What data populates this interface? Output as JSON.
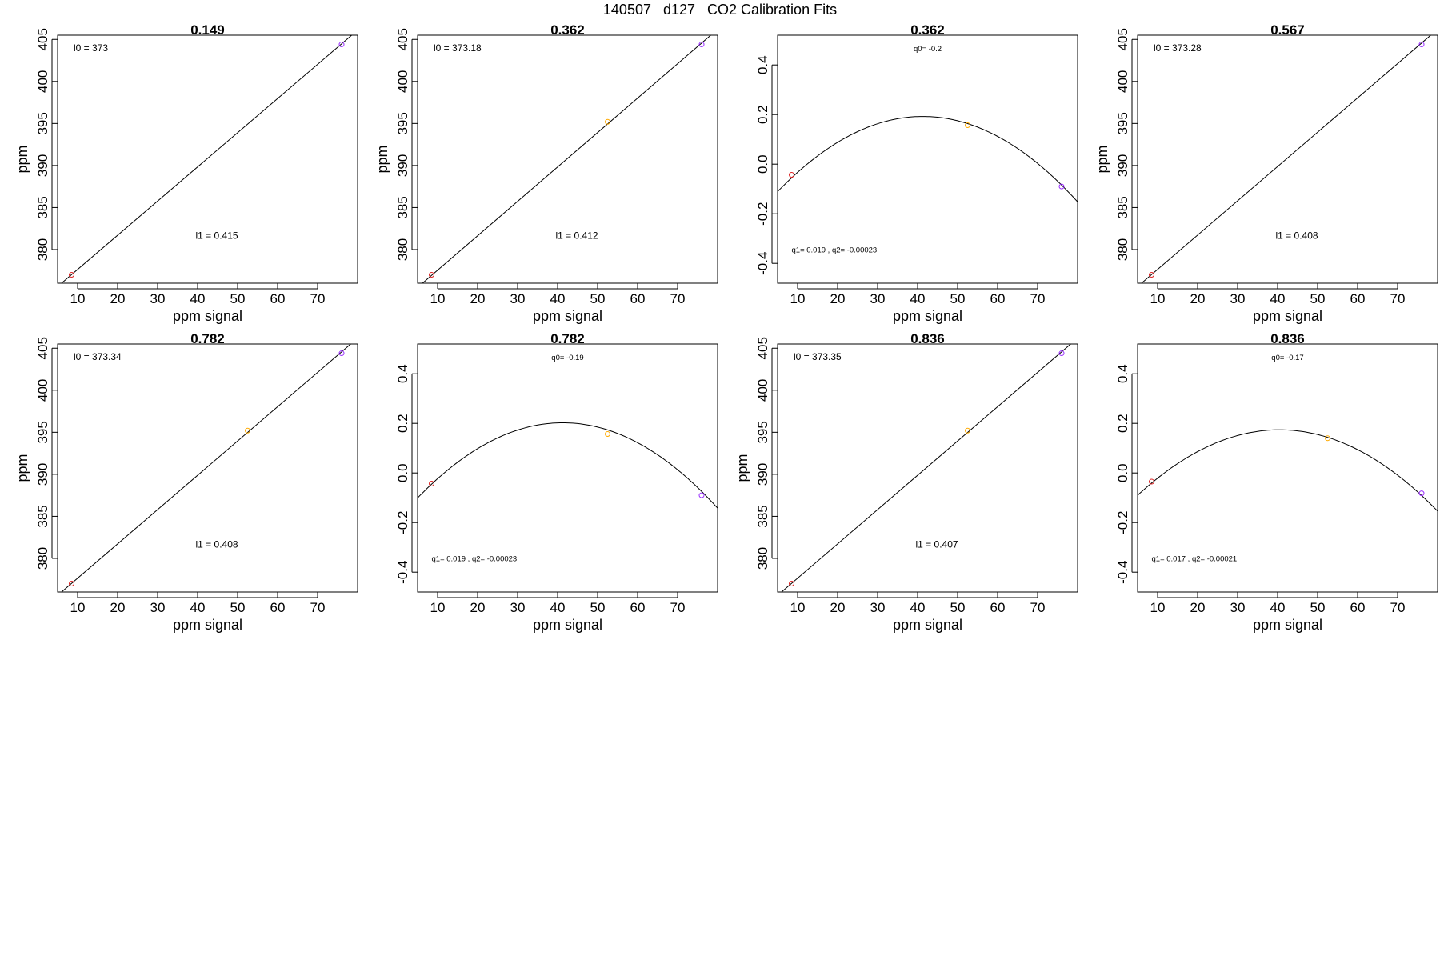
{
  "page_title": "140507   d127   CO2 Calibration Fits",
  "chart_data": [
    {
      "type": "scatter",
      "title": "0.149",
      "xlabel": "ppm signal",
      "ylabel": "ppm",
      "xlim": [
        5,
        80
      ],
      "ylim": [
        376,
        405.5
      ],
      "xticks": [
        "10",
        "20",
        "30",
        "40",
        "50",
        "60",
        "70"
      ],
      "yticks": [
        "380",
        "385",
        "390",
        "395",
        "400",
        "405"
      ],
      "points": [
        {
          "x": 8.5,
          "y": 377,
          "color": "#dd2222"
        },
        {
          "x": 76,
          "y": 404.4,
          "color": "#9b30ff"
        }
      ],
      "fit": {
        "kind": "linear",
        "from": [
          5,
          375.6
        ],
        "to": [
          80,
          406.1
        ]
      },
      "annotations": [
        {
          "text": "l0 =  373",
          "x": 9,
          "y": 403.6
        },
        {
          "text": "l1 =  0.415",
          "x": 39.5,
          "y": 381.3
        }
      ],
      "grid": false
    },
    {
      "type": "scatter",
      "title": "0.362",
      "xlabel": "ppm signal",
      "ylabel": "ppm",
      "xlim": [
        5,
        80
      ],
      "ylim": [
        376,
        405.5
      ],
      "xticks": [
        "10",
        "20",
        "30",
        "40",
        "50",
        "60",
        "70"
      ],
      "yticks": [
        "380",
        "385",
        "390",
        "395",
        "400",
        "405"
      ],
      "points": [
        {
          "x": 8.5,
          "y": 377,
          "color": "#dd2222"
        },
        {
          "x": 52.5,
          "y": 395.2,
          "color": "#ffaa00"
        },
        {
          "x": 76,
          "y": 404.4,
          "color": "#9b30ff"
        }
      ],
      "fit": {
        "kind": "linear",
        "from": [
          5,
          375.5
        ],
        "to": [
          80,
          406.2
        ]
      },
      "annotations": [
        {
          "text": "l0 =  373.18",
          "x": 9,
          "y": 403.6
        },
        {
          "text": "l1 =  0.412",
          "x": 39.5,
          "y": 381.3
        }
      ],
      "grid": false
    },
    {
      "type": "scatter",
      "title": "0.362",
      "xlabel": "ppm signal",
      "ylabel": "",
      "xlim": [
        5,
        80
      ],
      "ylim": [
        -0.48,
        0.52
      ],
      "xticks": [
        "10",
        "20",
        "30",
        "40",
        "50",
        "60",
        "70"
      ],
      "yticks": [
        "-0.4",
        "-0.2",
        "0.0",
        "0.2",
        "0.4"
      ],
      "points": [
        {
          "x": 8.5,
          "y": -0.043,
          "color": "#dd2222"
        },
        {
          "x": 52.5,
          "y": 0.157,
          "color": "#ffaa00"
        },
        {
          "x": 76,
          "y": -0.09,
          "color": "#9b30ff"
        }
      ],
      "fit": {
        "kind": "quadratic",
        "q0": -0.2,
        "q1": 0.019,
        "q2": -0.00023
      },
      "annotations": [
        {
          "text": "q0= -0.2",
          "x": 42.5,
          "y": 0.455,
          "small": true
        },
        {
          "text": "q1= 0.019 , q2= -0.00023",
          "x": 8.5,
          "y": -0.355,
          "small": true
        }
      ],
      "grid": false
    },
    {
      "type": "scatter",
      "title": "0.567",
      "xlabel": "ppm signal",
      "ylabel": "ppm",
      "xlim": [
        5,
        80
      ],
      "ylim": [
        376,
        405.5
      ],
      "xticks": [
        "10",
        "20",
        "30",
        "40",
        "50",
        "60",
        "70"
      ],
      "yticks": [
        "380",
        "385",
        "390",
        "395",
        "400",
        "405"
      ],
      "points": [
        {
          "x": 8.5,
          "y": 377,
          "color": "#dd2222"
        },
        {
          "x": 76,
          "y": 404.4,
          "color": "#9b30ff"
        }
      ],
      "fit": {
        "kind": "linear",
        "from": [
          5,
          375.6
        ],
        "to": [
          80,
          406.2
        ]
      },
      "annotations": [
        {
          "text": "l0 =  373.28",
          "x": 9,
          "y": 403.6
        },
        {
          "text": "l1 =  0.408",
          "x": 39.5,
          "y": 381.3
        }
      ],
      "grid": false
    },
    {
      "type": "scatter",
      "title": "0.782",
      "xlabel": "ppm signal",
      "ylabel": "ppm",
      "xlim": [
        5,
        80
      ],
      "ylim": [
        376,
        405.5
      ],
      "xticks": [
        "10",
        "20",
        "30",
        "40",
        "50",
        "60",
        "70"
      ],
      "yticks": [
        "380",
        "385",
        "390",
        "395",
        "400",
        "405"
      ],
      "points": [
        {
          "x": 8.5,
          "y": 377,
          "color": "#dd2222"
        },
        {
          "x": 52.5,
          "y": 395.2,
          "color": "#ffaa00"
        },
        {
          "x": 76,
          "y": 404.4,
          "color": "#9b30ff"
        }
      ],
      "fit": {
        "kind": "linear",
        "from": [
          5,
          375.6
        ],
        "to": [
          80,
          406.2
        ]
      },
      "annotations": [
        {
          "text": "l0 =  373.34",
          "x": 9,
          "y": 403.6
        },
        {
          "text": "l1 =  0.408",
          "x": 39.5,
          "y": 381.3
        }
      ],
      "grid": false
    },
    {
      "type": "scatter",
      "title": "0.782",
      "xlabel": "ppm signal",
      "ylabel": "",
      "xlim": [
        5,
        80
      ],
      "ylim": [
        -0.48,
        0.52
      ],
      "xticks": [
        "10",
        "20",
        "30",
        "40",
        "50",
        "60",
        "70"
      ],
      "yticks": [
        "-0.4",
        "-0.2",
        "0.0",
        "0.2",
        "0.4"
      ],
      "points": [
        {
          "x": 8.5,
          "y": -0.043,
          "color": "#dd2222"
        },
        {
          "x": 52.5,
          "y": 0.157,
          "color": "#ffaa00"
        },
        {
          "x": 76,
          "y": -0.09,
          "color": "#9b30ff"
        }
      ],
      "fit": {
        "kind": "quadratic",
        "q0": -0.19,
        "q1": 0.019,
        "q2": -0.00023
      },
      "annotations": [
        {
          "text": "q0= -0.19",
          "x": 42.5,
          "y": 0.455,
          "small": true
        },
        {
          "text": "q1= 0.019 , q2= -0.00023",
          "x": 8.5,
          "y": -0.355,
          "small": true
        }
      ],
      "grid": false
    },
    {
      "type": "scatter",
      "title": "0.836",
      "xlabel": "ppm signal",
      "ylabel": "ppm",
      "xlim": [
        5,
        80
      ],
      "ylim": [
        376,
        405.5
      ],
      "xticks": [
        "10",
        "20",
        "30",
        "40",
        "50",
        "60",
        "70"
      ],
      "yticks": [
        "380",
        "385",
        "390",
        "395",
        "400",
        "405"
      ],
      "points": [
        {
          "x": 8.5,
          "y": 377,
          "color": "#dd2222"
        },
        {
          "x": 52.5,
          "y": 395.2,
          "color": "#ffaa00"
        },
        {
          "x": 76,
          "y": 404.4,
          "color": "#9b30ff"
        }
      ],
      "fit": {
        "kind": "linear",
        "from": [
          5,
          375.6
        ],
        "to": [
          80,
          406.2
        ]
      },
      "annotations": [
        {
          "text": "l0 =  373.35",
          "x": 9,
          "y": 403.6
        },
        {
          "text": "l1 =  0.407",
          "x": 39.5,
          "y": 381.3
        }
      ],
      "grid": false
    },
    {
      "type": "scatter",
      "title": "0.836",
      "xlabel": "ppm signal",
      "ylabel": "",
      "xlim": [
        5,
        80
      ],
      "ylim": [
        -0.48,
        0.52
      ],
      "xticks": [
        "10",
        "20",
        "30",
        "40",
        "50",
        "60",
        "70"
      ],
      "yticks": [
        "-0.4",
        "-0.2",
        "0.0",
        "0.2",
        "0.4"
      ],
      "points": [
        {
          "x": 8.5,
          "y": -0.035,
          "color": "#dd2222"
        },
        {
          "x": 52.5,
          "y": 0.14,
          "color": "#ffaa00"
        },
        {
          "x": 76,
          "y": -0.082,
          "color": "#9b30ff"
        }
      ],
      "fit": {
        "kind": "quadratic",
        "q0": -0.17,
        "q1": 0.017,
        "q2": -0.00021
      },
      "annotations": [
        {
          "text": "q0= -0.17",
          "x": 42.5,
          "y": 0.455,
          "small": true
        },
        {
          "text": "q1= 0.017 , q2= -0.00021",
          "x": 8.5,
          "y": -0.355,
          "small": true
        }
      ],
      "grid": false
    }
  ]
}
